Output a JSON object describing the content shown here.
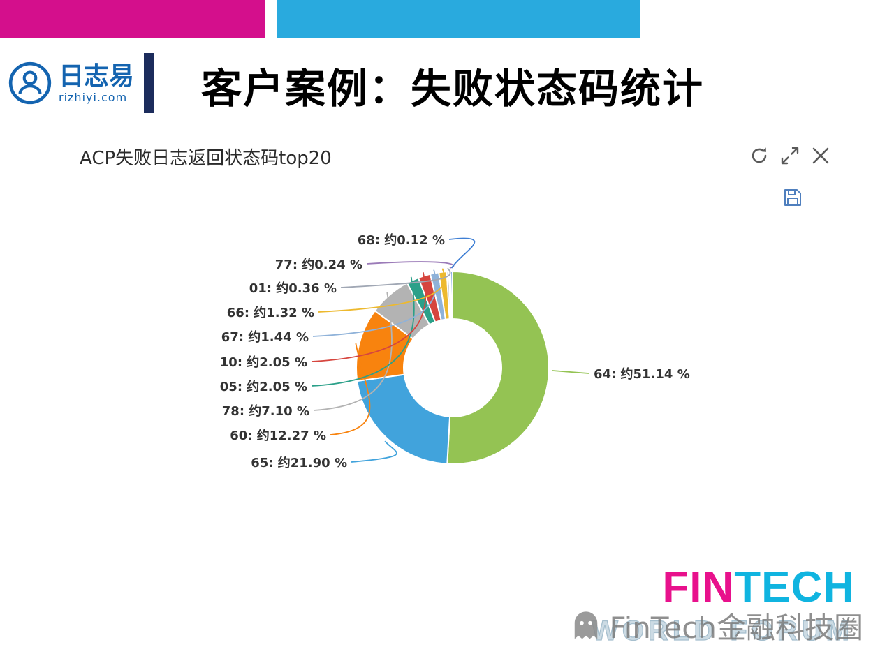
{
  "header": {
    "title": "客户案例：失败状态码统计"
  },
  "logo": {
    "name": "日志易",
    "domain": "rizhiyi.com"
  },
  "panel": {
    "title": "ACP失败日志返回状态码top20"
  },
  "toolbar": {
    "refresh": "refresh",
    "expand": "expand",
    "close": "close",
    "save": "save"
  },
  "chart_data": {
    "type": "pie",
    "subtype": "donut",
    "title": "ACP失败日志返回状态码top20",
    "unit": "%",
    "start_angle": "top",
    "direction": "clockwise",
    "legend": "off",
    "label_format": "{name}: 约{value} %",
    "series": [
      {
        "name": "64",
        "value": 51.14,
        "label": "64: 约51.14 %",
        "color": "#94c353"
      },
      {
        "name": "65",
        "value": 21.9,
        "label": "65: 约21.90 %",
        "color": "#41a3dc"
      },
      {
        "name": "60",
        "value": 12.27,
        "label": "60: 约12.27 %",
        "color": "#f8830e"
      },
      {
        "name": "78",
        "value": 7.1,
        "label": "78: 约7.10 %",
        "color": "#b3b3b3"
      },
      {
        "name": "05",
        "value": 2.05,
        "label": "05: 约2.05 %",
        "color": "#2ba089"
      },
      {
        "name": "10",
        "value": 2.05,
        "label": "10: 约2.05 %",
        "color": "#d6453e"
      },
      {
        "name": "67",
        "value": 1.44,
        "label": "67: 约1.44 %",
        "color": "#8fb2d9"
      },
      {
        "name": "66",
        "value": 1.32,
        "label": "66: 约1.32 %",
        "color": "#edb92e"
      },
      {
        "name": "01",
        "value": 0.36,
        "label": "01: 约0.36 %",
        "color": "#a0a7b4"
      },
      {
        "name": "77",
        "value": 0.24,
        "label": "77: 约0.24 %",
        "color": "#9b7bb8"
      },
      {
        "name": "68",
        "value": 0.12,
        "label": "68: 约0.12 %",
        "color": "#3f7fd4"
      }
    ]
  },
  "footer": {
    "fin": "FIN",
    "tech": "TECH",
    "world_forum": "WORLD FORUM",
    "watermark": "FinTech金融科技圈"
  }
}
